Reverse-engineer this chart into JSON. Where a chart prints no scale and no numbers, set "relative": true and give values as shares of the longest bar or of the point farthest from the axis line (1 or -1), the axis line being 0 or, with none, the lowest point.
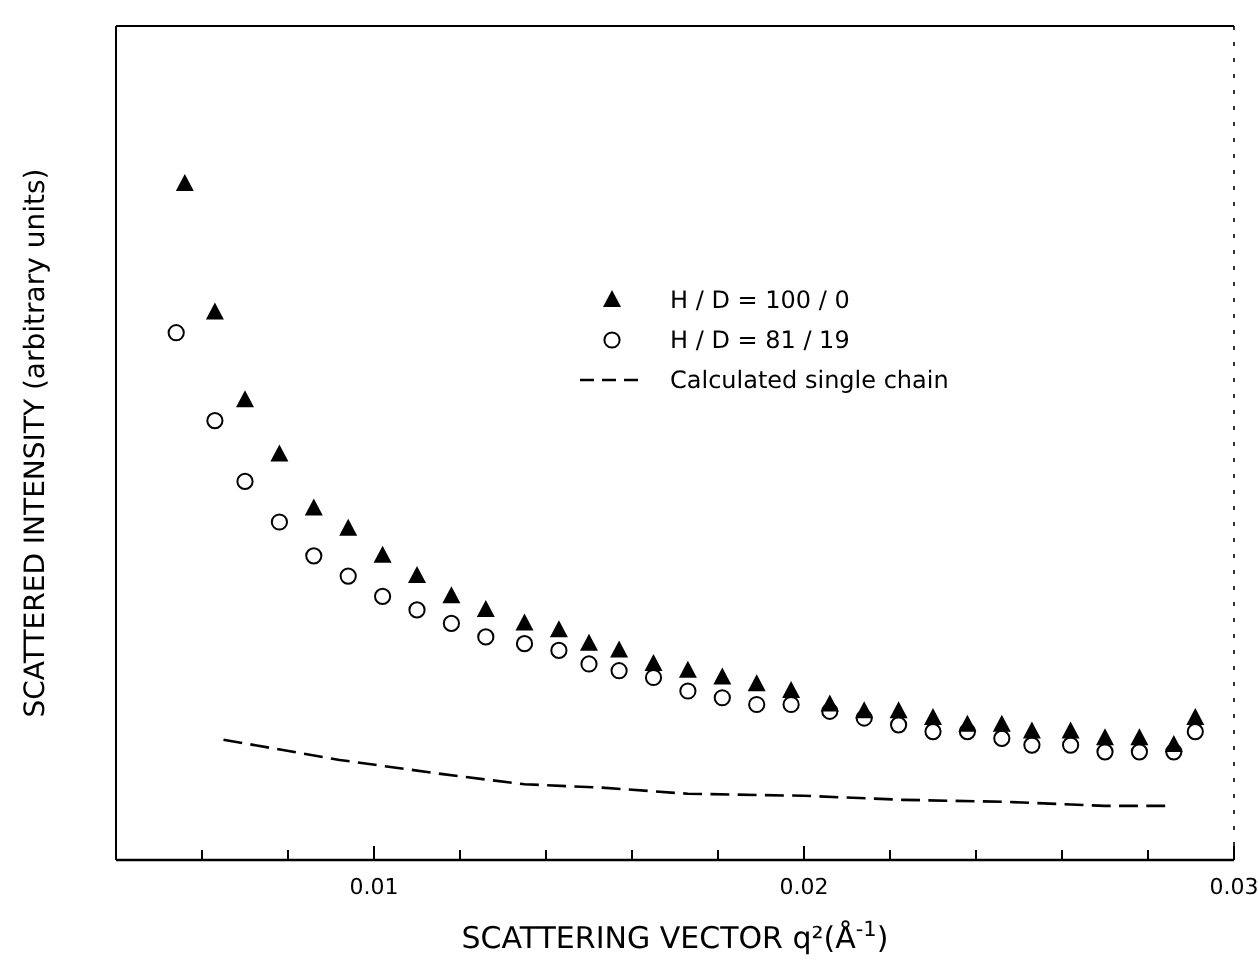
{
  "chart_data": {
    "type": "scatter",
    "relative": true,
    "xlabel": "SCATTERING VECTOR q²(Å$^{-1}$)",
    "ylabel": "SCATTERED INTENSITY (arbitrary units)",
    "xlim": [
      0.004,
      0.03
    ],
    "xticks": [
      {
        "value": 0.006,
        "label": null
      },
      {
        "value": 0.008,
        "label": null
      },
      0.01,
      {
        "value": 0.012,
        "label": null
      },
      {
        "value": 0.014,
        "label": null
      },
      {
        "value": 0.016,
        "label": null
      },
      {
        "value": 0.018,
        "label": null
      },
      0.02,
      {
        "value": 0.022,
        "label": null
      },
      {
        "value": 0.024,
        "label": null
      },
      {
        "value": 0.026,
        "label": null
      },
      {
        "value": 0.028,
        "label": null
      },
      0.03
    ],
    "legend": "top right",
    "grid": false,
    "series": [
      {
        "name": "H / D = 100 / 0",
        "marker": "triangle",
        "color": "#000000",
        "x": [
          0.0056,
          0.0063,
          0.007,
          0.0078,
          0.0086,
          0.0094,
          0.0102,
          0.011,
          0.0118,
          0.0126,
          0.0135,
          0.0143,
          0.015,
          0.0157,
          0.0165,
          0.0173,
          0.0181,
          0.0189,
          0.0197,
          0.0206,
          0.0214,
          0.0222,
          0.023,
          0.0238,
          0.0246,
          0.0253,
          0.0262,
          0.027,
          0.0278,
          0.0286,
          0.0291
        ],
        "values": [
          1,
          0.81,
          0.68,
          0.6,
          0.52,
          0.49,
          0.45,
          0.42,
          0.39,
          0.37,
          0.35,
          0.34,
          0.32,
          0.31,
          0.29,
          0.28,
          0.27,
          0.26,
          0.25,
          0.23,
          0.22,
          0.22,
          0.21,
          0.2,
          0.2,
          0.19,
          0.19,
          0.18,
          0.18,
          0.17,
          0.21
        ]
      },
      {
        "name": "H / D = 81 / 19",
        "marker": "circle",
        "color": "#000000",
        "x": [
          0.0054,
          0.0063,
          0.007,
          0.0078,
          0.0086,
          0.0094,
          0.0102,
          0.011,
          0.0118,
          0.0126,
          0.0135,
          0.0143,
          0.015,
          0.0157,
          0.0165,
          0.0173,
          0.0181,
          0.0189,
          0.0197,
          0.0206,
          0.0214,
          0.0222,
          0.023,
          0.0238,
          0.0246,
          0.0253,
          0.0262,
          0.027,
          0.0278,
          0.0286,
          0.0291
        ],
        "values": [
          0.78,
          0.65,
          0.56,
          0.5,
          0.45,
          0.42,
          0.39,
          0.37,
          0.35,
          0.33,
          0.32,
          0.31,
          0.29,
          0.28,
          0.27,
          0.25,
          0.24,
          0.23,
          0.23,
          0.22,
          0.21,
          0.2,
          0.19,
          0.19,
          0.18,
          0.17,
          0.17,
          0.16,
          0.16,
          0.16,
          0.19
        ]
      },
      {
        "name": "Calculated single chain",
        "type": "line",
        "line_style": "dashed",
        "marker": "none",
        "color": "#000000",
        "x": [
          0.0065,
          0.0092,
          0.0116,
          0.0135,
          0.0153,
          0.0173,
          0.02,
          0.0223,
          0.0247,
          0.027,
          0.0284
        ],
        "values": [
          0.178,
          0.148,
          0.127,
          0.112,
          0.107,
          0.098,
          0.095,
          0.089,
          0.086,
          0.08,
          0.08
        ]
      }
    ]
  }
}
